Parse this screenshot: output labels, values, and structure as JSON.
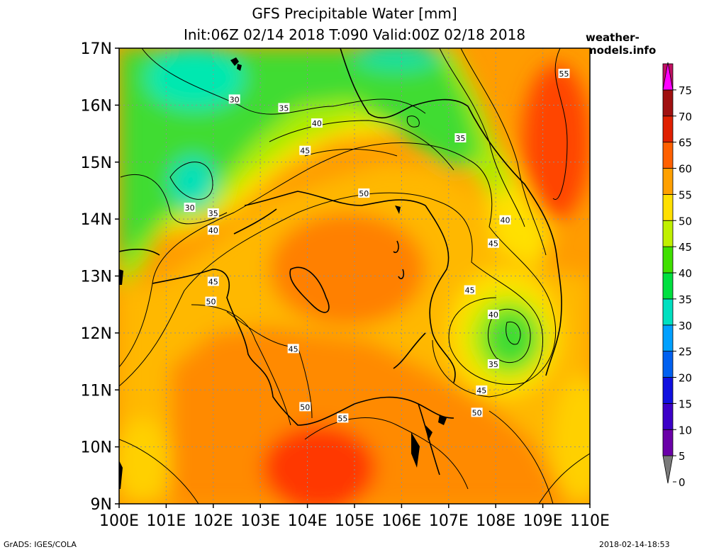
{
  "header": {
    "title_line1": "GFS Precipitable Water [mm]",
    "title_line2": "Init:06Z 02/14 2018 T:090 Valid:00Z 02/18 2018",
    "site": "weather-models.info"
  },
  "map": {
    "lat_range": [
      9,
      17
    ],
    "lon_range": [
      100,
      110
    ],
    "lat_labels": [
      "9N",
      "10N",
      "11N",
      "12N",
      "13N",
      "14N",
      "15N",
      "16N",
      "17N"
    ],
    "lon_labels": [
      "100E",
      "101E",
      "102E",
      "103E",
      "104E",
      "105E",
      "106E",
      "107E",
      "108E",
      "109E",
      "110E"
    ],
    "contour_labels": [
      {
        "text": "30",
        "lon": 102.45,
        "lat": 16.1
      },
      {
        "text": "30",
        "lon": 101.5,
        "lat": 14.2
      },
      {
        "text": "35",
        "lon": 103.5,
        "lat": 15.95
      },
      {
        "text": "35",
        "lon": 102.0,
        "lat": 14.1
      },
      {
        "text": "35",
        "lon": 107.25,
        "lat": 15.42
      },
      {
        "text": "35",
        "lon": 107.95,
        "lat": 11.45
      },
      {
        "text": "40",
        "lon": 104.2,
        "lat": 15.68
      },
      {
        "text": "40",
        "lon": 102.0,
        "lat": 13.8
      },
      {
        "text": "40",
        "lon": 108.2,
        "lat": 13.98
      },
      {
        "text": "40",
        "lon": 107.95,
        "lat": 12.32
      },
      {
        "text": "45",
        "lon": 103.95,
        "lat": 15.2
      },
      {
        "text": "45",
        "lon": 102.0,
        "lat": 12.9
      },
      {
        "text": "45",
        "lon": 107.95,
        "lat": 13.57
      },
      {
        "text": "45",
        "lon": 107.45,
        "lat": 12.75
      },
      {
        "text": "45",
        "lon": 103.7,
        "lat": 11.72
      },
      {
        "text": "45",
        "lon": 107.7,
        "lat": 10.99
      },
      {
        "text": "50",
        "lon": 105.2,
        "lat": 14.45
      },
      {
        "text": "50",
        "lon": 101.95,
        "lat": 12.55
      },
      {
        "text": "50",
        "lon": 103.95,
        "lat": 10.7
      },
      {
        "text": "50",
        "lon": 107.6,
        "lat": 10.6
      },
      {
        "text": "55",
        "lon": 104.75,
        "lat": 10.5
      },
      {
        "text": "55",
        "lon": 109.45,
        "lat": 16.55
      }
    ]
  },
  "colorbar": {
    "ticks": [
      "0",
      "5",
      "10",
      "15",
      "20",
      "25",
      "30",
      "35",
      "40",
      "45",
      "50",
      "55",
      "60",
      "65",
      "70",
      "75"
    ],
    "colors": [
      "#7a7a7a",
      "#6a00a8",
      "#3c00c8",
      "#1010e0",
      "#0060f0",
      "#00a0ff",
      "#00e0c0",
      "#00e040",
      "#40e000",
      "#c0f000",
      "#ffe000",
      "#ffa000",
      "#ff6000",
      "#e02000",
      "#a01010",
      "#c01060",
      "#ff00ff"
    ]
  },
  "footer": {
    "left": "GrADS: IGES/COLA",
    "right": "2018-02-14-18:53"
  }
}
